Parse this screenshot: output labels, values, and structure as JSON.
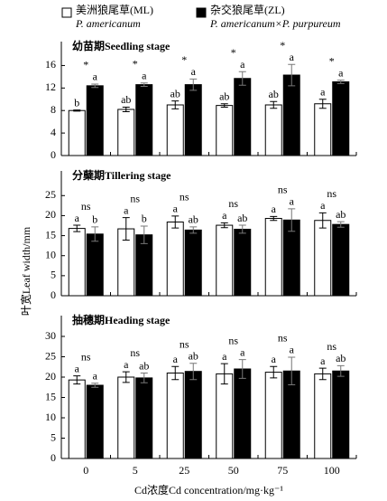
{
  "legend": [
    {
      "name": "美洲狼尾草(ML)",
      "latin": "P. americanum",
      "color": "#ffffff"
    },
    {
      "name": "杂交狼尾草(ZL)",
      "latin": "P. americanum×P. purpureum",
      "color": "#000000"
    }
  ],
  "y_label": "叶宽Leaf width/mm",
  "chart_data": [
    {
      "type": "bar",
      "title": "幼苗期Seedling stage",
      "ylim": [
        0,
        18
      ],
      "yticks": [
        0,
        4,
        8,
        12,
        16
      ],
      "significance": [
        "*",
        "*",
        "*",
        "*",
        "*",
        "*"
      ],
      "series": [
        {
          "color": "#ffffff",
          "values": [
            8,
            8.2,
            9,
            8.9,
            9,
            9.2
          ],
          "errors": [
            0.1,
            0.4,
            0.7,
            0.3,
            0.6,
            0.8
          ],
          "letters": [
            "b",
            "ab",
            "ab",
            "ab",
            "ab",
            "a"
          ]
        },
        {
          "color": "#000000",
          "values": [
            12.4,
            12.6,
            12.6,
            13.7,
            14.3,
            13.1
          ],
          "errors": [
            0.3,
            0.3,
            1,
            1.2,
            1.9,
            0.3
          ],
          "letters": [
            "a",
            "a",
            "a",
            "a",
            "a",
            "a"
          ]
        }
      ]
    },
    {
      "type": "bar",
      "title": "分蘖期Tillering stage",
      "ylim": [
        0,
        28
      ],
      "yticks": [
        0,
        5,
        10,
        15,
        20,
        25
      ],
      "significance": [
        "ns",
        "ns",
        "ns",
        "ns",
        "ns",
        "ns"
      ],
      "series": [
        {
          "color": "#ffffff",
          "values": [
            16.8,
            16.7,
            18.4,
            17.6,
            19.3,
            18.8
          ],
          "errors": [
            0.8,
            2.8,
            1.5,
            0.6,
            0.5,
            1.9
          ],
          "letters": [
            "a",
            "a",
            "a",
            "a",
            "a",
            "a"
          ]
        },
        {
          "color": "#000000",
          "values": [
            15.4,
            15.2,
            16.4,
            16.6,
            18.9,
            17.8
          ],
          "errors": [
            1.8,
            2.2,
            0.8,
            1,
            2.8,
            0.7
          ],
          "letters": [
            "b",
            "b",
            "ab",
            "ab",
            "a",
            "ab"
          ]
        }
      ]
    },
    {
      "type": "bar",
      "title": "抽穗期Heading stage",
      "ylim": [
        0,
        32
      ],
      "yticks": [
        0,
        5,
        10,
        15,
        20,
        25,
        30
      ],
      "significance": [
        "ns",
        "ns",
        "ns",
        "ns",
        "ns",
        "ns"
      ],
      "categories": [
        "0",
        "5",
        "25",
        "50",
        "75",
        "100"
      ],
      "x_label": "Cd浓度Cd  concentration/mg·kg⁻¹",
      "series": [
        {
          "color": "#ffffff",
          "values": [
            19.3,
            20,
            21,
            20.8,
            21.2,
            20.8
          ],
          "errors": [
            1,
            1.3,
            1.6,
            2.5,
            1.4,
            1.4
          ],
          "letters": [
            "a",
            "a",
            "a",
            "a",
            "a",
            "a"
          ]
        },
        {
          "color": "#000000",
          "values": [
            18,
            19.8,
            21.4,
            22,
            21.5,
            21.5
          ],
          "errors": [
            0.5,
            1.2,
            2,
            2.3,
            3.4,
            1.3
          ],
          "letters": [
            "a",
            "ab",
            "ab",
            "a",
            "a",
            "ab"
          ]
        }
      ]
    }
  ]
}
